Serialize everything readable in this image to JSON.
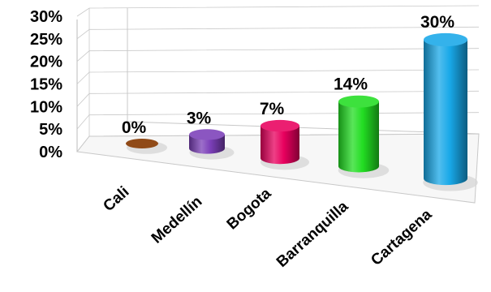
{
  "chart_data": {
    "type": "bar",
    "categories": [
      "Cali",
      "Medellín",
      "Bogota",
      "Barranquilla",
      "Cartagena"
    ],
    "values": [
      0,
      3,
      7,
      14,
      30
    ],
    "value_labels": [
      "0%",
      "3%",
      "7%",
      "14%",
      "30%"
    ],
    "y_ticks": [
      "0%",
      "5%",
      "10%",
      "15%",
      "20%",
      "25%",
      "30%"
    ],
    "ylim": [
      0,
      30
    ],
    "grid": true,
    "style": "3d-cylinder",
    "colors": [
      "#a0521a",
      "#7b3fb8",
      "#e8005e",
      "#22dd22",
      "#18a8e8"
    ]
  }
}
